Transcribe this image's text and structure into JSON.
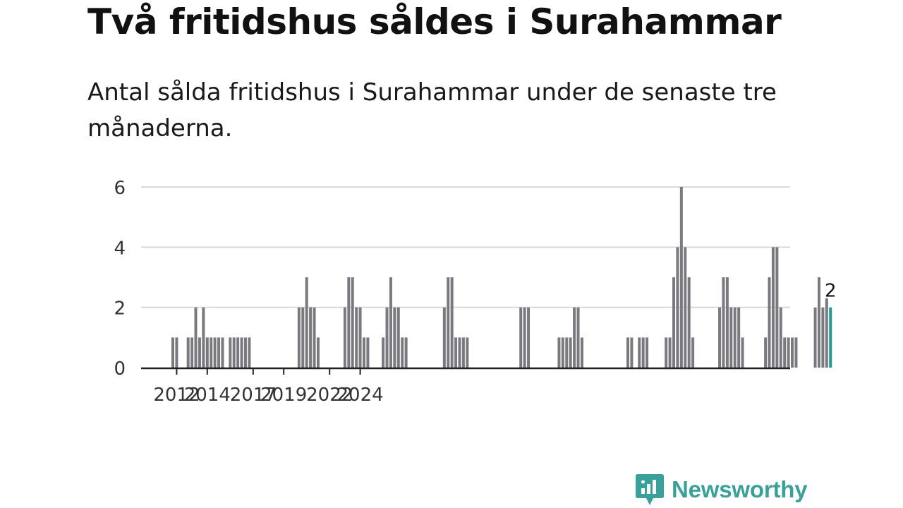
{
  "title": "Två fritidshus såldes i Surahammar",
  "subtitle": "Antal sålda fritidshus i Surahammar under de senaste tre månaderna.",
  "brand": {
    "name": "Newsworthy",
    "color": "#3aa09a",
    "icon": "bar-chart-speech-icon"
  },
  "chart_data": {
    "type": "bar",
    "x_unit": "quarter",
    "x_start": "2011 Q4",
    "ylim": [
      0,
      6
    ],
    "yticks": [
      0,
      2,
      4,
      6
    ],
    "xticks": [
      "2012",
      "2014",
      "2017",
      "2019",
      "2022",
      "2024"
    ],
    "grid": true,
    "bar_color": "#7a7980",
    "highlight_color": "#1f9a94",
    "highlight_label": "2",
    "values": [
      1,
      1,
      0,
      0,
      1,
      1,
      2,
      1,
      2,
      1,
      1,
      1,
      1,
      1,
      0,
      1,
      1,
      1,
      1,
      1,
      1,
      0,
      0,
      0,
      0,
      0,
      0,
      0,
      0,
      0,
      0,
      0,
      0,
      2,
      2,
      3,
      2,
      2,
      1,
      0,
      0,
      0,
      0,
      0,
      0,
      2,
      3,
      3,
      2,
      2,
      1,
      1,
      0,
      0,
      0,
      1,
      2,
      3,
      2,
      2,
      1,
      1,
      0,
      0,
      0,
      0,
      0,
      0,
      0,
      0,
      0,
      2,
      3,
      3,
      1,
      1,
      1,
      1,
      0,
      0,
      0,
      0,
      0,
      0,
      0,
      0,
      0,
      0,
      0,
      0,
      0,
      2,
      2,
      2,
      0,
      0,
      0,
      0,
      0,
      0,
      0,
      1,
      1,
      1,
      1,
      2,
      2,
      1,
      0,
      0,
      0,
      0,
      0,
      0,
      0,
      0,
      0,
      0,
      0,
      1,
      1,
      0,
      1,
      1,
      1,
      0,
      0,
      0,
      0,
      1,
      1,
      3,
      4,
      6,
      4,
      3,
      1,
      0,
      0,
      0,
      0,
      0,
      0,
      2,
      3,
      3,
      2,
      2,
      2,
      1,
      0,
      0,
      0,
      0,
      0,
      1,
      3,
      4,
      4,
      2,
      1,
      1,
      1,
      1,
      0,
      0,
      0,
      0,
      2,
      3,
      2,
      2.3,
      2
    ]
  }
}
